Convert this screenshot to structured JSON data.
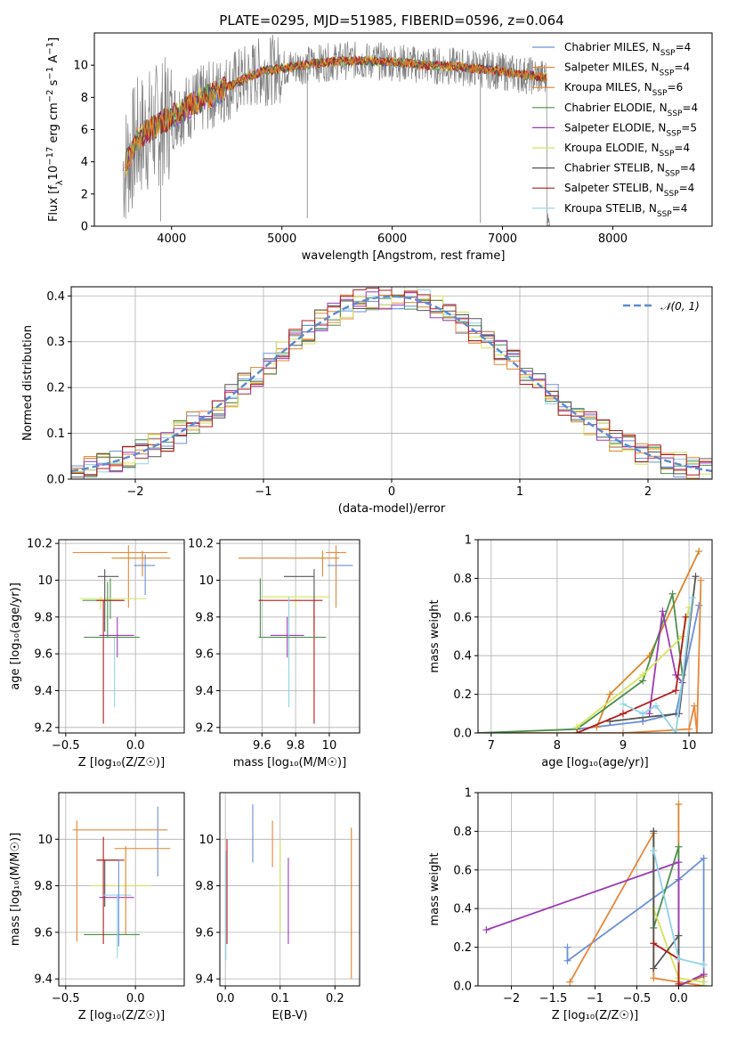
{
  "figure_title": "PLATE=0295, MJD=51985, FIBERID=0596, z=0.064",
  "series_colors": [
    "#6b8fd9",
    "#e8873a",
    "#d9862a",
    "#4d8f4d",
    "#9b3bb5",
    "#d4e45c",
    "#555555",
    "#b31b1b",
    "#8fd3e6"
  ],
  "chart_data": [
    {
      "name": "spectrum",
      "type": "line",
      "xlabel": "wavelength [Angstrom, rest frame]",
      "ylabel_parts": [
        "Flux [f",
        "λ",
        "10",
        "−17",
        " erg cm",
        "−2",
        " s",
        "−1",
        " A",
        "−1",
        "]"
      ],
      "xlim": [
        3300,
        8900
      ],
      "ylim": [
        0,
        12
      ],
      "xticks": [
        4000,
        5000,
        6000,
        7000,
        8000
      ],
      "yticks": [
        0,
        2,
        4,
        6,
        8,
        10
      ],
      "grid": false,
      "legend_position": "right",
      "legend": [
        {
          "base": "Chabrier MILES, N",
          "sub": "SSP",
          "tail": "=4"
        },
        {
          "base": "Salpeter MILES, N",
          "sub": "SSP",
          "tail": "=4"
        },
        {
          "base": "Kroupa MILES, N",
          "sub": "SSP",
          "tail": "=6"
        },
        {
          "base": "Chabrier ELODIE, N",
          "sub": "SSP",
          "tail": "=4"
        },
        {
          "base": "Salpeter ELODIE, N",
          "sub": "SSP",
          "tail": "=5"
        },
        {
          "base": "Kroupa ELODIE, N",
          "sub": "SSP",
          "tail": "=4"
        },
        {
          "base": "Chabrier STELIB, N",
          "sub": "SSP",
          "tail": "=4"
        },
        {
          "base": "Salpeter STELIB, N",
          "sub": "SSP",
          "tail": "=4"
        },
        {
          "base": "Kroupa STELIB, N",
          "sub": "SSP",
          "tail": "=4"
        }
      ],
      "continuum": [
        [
          3560,
          3.5
        ],
        [
          3700,
          5.5
        ],
        [
          3850,
          6.2
        ],
        [
          4000,
          6.8
        ],
        [
          4200,
          7.6
        ],
        [
          4500,
          8.6
        ],
        [
          4800,
          9.6
        ],
        [
          5000,
          9.8
        ],
        [
          5300,
          10.1
        ],
        [
          5600,
          10.3
        ],
        [
          6000,
          10.2
        ],
        [
          6300,
          10.0
        ],
        [
          6600,
          9.9
        ],
        [
          6900,
          9.7
        ],
        [
          7200,
          9.4
        ],
        [
          7400,
          9.2
        ]
      ]
    },
    {
      "name": "residuals",
      "type": "histogram",
      "xlabel": "(data-model)/error",
      "ylabel": "Normed distribution",
      "xlim": [
        -2.5,
        2.5
      ],
      "ylim": [
        0,
        0.42
      ],
      "xticks": [
        -2,
        -1,
        0,
        1,
        2
      ],
      "yticks": [
        0.0,
        0.1,
        0.2,
        0.3,
        0.4
      ],
      "grid": true,
      "reference_curve": "N(0,1)",
      "legend_label": "𝒩(0, 1)",
      "bin_width": 0.1
    },
    {
      "name": "age_vs_Z",
      "type": "errorbar",
      "xlabel": "Z [log₁₀(Z/Z☉)]",
      "ylabel": "age  [log₁₀(age/yr)]",
      "xlim": [
        -0.55,
        0.35
      ],
      "ylim": [
        9.17,
        10.22
      ],
      "xticks": [
        -0.5,
        0.0
      ],
      "yticks": [
        9.2,
        9.4,
        9.6,
        9.8,
        10.0,
        10.2
      ],
      "grid": true,
      "points": [
        {
          "x": 0.07,
          "y": 10.08,
          "xerr": [
            0.08,
            0.07
          ],
          "yerr": [
            0.16,
            0.06
          ],
          "c": 0
        },
        {
          "x": -0.05,
          "y": 10.15,
          "xerr": [
            0.4,
            0.28
          ],
          "yerr": [
            0.3,
            0.04
          ],
          "c": 1
        },
        {
          "x": 0.05,
          "y": 10.12,
          "xerr": [
            0.22,
            0.2
          ],
          "yerr": [
            0.1,
            0.04
          ],
          "c": 2
        },
        {
          "x": -0.18,
          "y": 9.89,
          "xerr": [
            0.2,
            0.1
          ],
          "yerr": [
            0.1,
            0.12
          ],
          "c": 3
        },
        {
          "x": -0.13,
          "y": 9.7,
          "xerr": [
            0.13,
            0.12
          ],
          "yerr": [
            0.12,
            0.1
          ],
          "c": 4
        },
        {
          "x": -0.25,
          "y": 9.9,
          "xerr": [
            0.15,
            0.33
          ],
          "yerr": [
            0.06,
            0.01
          ],
          "c": 5
        },
        {
          "x": -0.22,
          "y": 10.02,
          "xerr": [
            0.05,
            0.1
          ],
          "yerr": [
            0.3,
            0.04
          ],
          "c": 6
        },
        {
          "x": -0.23,
          "y": 9.89,
          "xerr": [
            0.05,
            0.15
          ],
          "yerr": [
            0.67,
            0.0
          ],
          "c": 7
        },
        {
          "x": -0.15,
          "y": 9.69,
          "xerr": [
            0.15,
            0.1
          ],
          "yerr": [
            0.38,
            0.0
          ],
          "c": 8
        },
        {
          "x": -0.2,
          "y": 9.69,
          "xerr": [
            0.17,
            0.23
          ],
          "yerr": [
            0.0,
            0.3
          ],
          "c": 3
        }
      ]
    },
    {
      "name": "age_vs_mass",
      "type": "errorbar",
      "xlabel": "mass [log₁₀(M/M☉)]",
      "ylabel": "",
      "xlim": [
        9.35,
        10.18
      ],
      "ylim": [
        9.17,
        10.22
      ],
      "xticks": [
        9.6,
        9.8,
        10.0
      ],
      "yticks": [
        9.2,
        9.4,
        9.6,
        9.8,
        10.0,
        10.2
      ],
      "grid": true,
      "points": [
        {
          "x": 10.04,
          "y": 10.08,
          "xerr": [
            0.05,
            0.1
          ],
          "yerr": [
            0.16,
            0.06
          ],
          "c": 0
        },
        {
          "x": 10.04,
          "y": 10.15,
          "xerr": [
            0.06,
            0.06
          ],
          "yerr": [
            0.3,
            0.04
          ],
          "c": 1
        },
        {
          "x": 9.96,
          "y": 10.12,
          "xerr": [
            0.5,
            0.1
          ],
          "yerr": [
            0.1,
            0.04
          ],
          "c": 2
        },
        {
          "x": 9.59,
          "y": 9.89,
          "xerr": [
            0.0,
            0.0
          ],
          "yerr": [
            0.2,
            0.12
          ],
          "c": 3
        },
        {
          "x": 9.75,
          "y": 9.7,
          "xerr": [
            0.1,
            0.1
          ],
          "yerr": [
            0.12,
            0.1
          ],
          "c": 4
        },
        {
          "x": 9.8,
          "y": 9.91,
          "xerr": [
            0.2,
            0.2
          ],
          "yerr": [
            0.06,
            0.0
          ],
          "c": 5
        },
        {
          "x": 9.91,
          "y": 10.02,
          "xerr": [
            0.18,
            0.0
          ],
          "yerr": [
            0.3,
            0.04
          ],
          "c": 6
        },
        {
          "x": 9.91,
          "y": 9.89,
          "xerr": [
            0.33,
            0.05
          ],
          "yerr": [
            0.67,
            0.0
          ],
          "c": 7
        },
        {
          "x": 9.76,
          "y": 9.69,
          "xerr": [
            0.0,
            0.0
          ],
          "yerr": [
            0.38,
            0.22
          ],
          "c": 8
        },
        {
          "x": 9.75,
          "y": 9.69,
          "xerr": [
            0.17,
            0.23
          ],
          "yerr": [
            0.0,
            0.0
          ],
          "c": 3
        }
      ]
    },
    {
      "name": "weight_vs_age",
      "type": "line",
      "xlabel": "age  [log₁₀(age/yr)]",
      "ylabel": "mass weight",
      "xlim": [
        6.8,
        10.35
      ],
      "ylim": [
        0,
        1
      ],
      "xticks": [
        7,
        8,
        9,
        10
      ],
      "yticks": [
        0.0,
        0.2,
        0.4,
        0.6,
        0.8,
        1.0
      ],
      "grid": true,
      "series": [
        {
          "c": 0,
          "pts": [
            [
              8.3,
              0.02
            ],
            [
              9.3,
              0.06
            ],
            [
              9.8,
              0.1
            ],
            [
              10.15,
              0.66
            ]
          ]
        },
        {
          "c": 1,
          "pts": [
            [
              6.8,
              0.0
            ],
            [
              9.0,
              0.0
            ],
            [
              10.0,
              0.02
            ],
            [
              10.08,
              0.14
            ],
            [
              10.12,
              0.0
            ],
            [
              10.18,
              0.79
            ]
          ]
        },
        {
          "c": 2,
          "pts": [
            [
              8.6,
              0.03
            ],
            [
              8.8,
              0.2
            ],
            [
              9.4,
              0.4
            ],
            [
              10.15,
              0.94
            ]
          ]
        },
        {
          "c": 3,
          "pts": [
            [
              6.8,
              0.0
            ],
            [
              8.3,
              0.02
            ],
            [
              9.3,
              0.27
            ],
            [
              9.75,
              0.72
            ],
            [
              9.9,
              0.3
            ]
          ]
        },
        {
          "c": 4,
          "pts": [
            [
              9.4,
              0.1
            ],
            [
              9.6,
              0.63
            ],
            [
              9.8,
              0.3
            ],
            [
              9.9,
              0.26
            ]
          ]
        },
        {
          "c": 5,
          "pts": [
            [
              8.3,
              0.03
            ],
            [
              9.3,
              0.3
            ],
            [
              9.9,
              0.5
            ],
            [
              10.0,
              0.65
            ]
          ]
        },
        {
          "c": 6,
          "pts": [
            [
              8.8,
              0.06
            ],
            [
              9.3,
              0.08
            ],
            [
              9.85,
              0.1
            ],
            [
              10.1,
              0.81
            ]
          ]
        },
        {
          "c": 7,
          "pts": [
            [
              8.3,
              0.0
            ],
            [
              9.0,
              0.1
            ],
            [
              9.8,
              0.22
            ],
            [
              9.95,
              0.6
            ]
          ]
        },
        {
          "c": 8,
          "pts": [
            [
              9.0,
              0.15
            ],
            [
              9.3,
              0.1
            ],
            [
              9.5,
              0.14
            ],
            [
              9.8,
              0.0
            ],
            [
              10.05,
              0.7
            ]
          ]
        }
      ]
    },
    {
      "name": "mass_vs_Z",
      "type": "errorbar",
      "xlabel": "Z [log₁₀(Z/Z☉)]",
      "ylabel": "mass [log₁₀(M/M☉)]",
      "xlim": [
        -0.55,
        0.35
      ],
      "ylim": [
        9.37,
        10.2
      ],
      "xticks": [
        -0.5,
        0.0
      ],
      "yticks": [
        9.4,
        9.6,
        9.8,
        10.0
      ],
      "grid": true,
      "points": [
        {
          "x": 0.16,
          "y": 10.04,
          "xerr": [
            0.0,
            0.0
          ],
          "yerr": [
            0.2,
            0.1
          ],
          "c": 0
        },
        {
          "x": -0.05,
          "y": 10.04,
          "xerr": [
            0.4,
            0.28
          ],
          "yerr": [
            0.0,
            0.0
          ],
          "c": 1
        },
        {
          "x": -0.42,
          "y": 9.96,
          "xerr": [
            0.0,
            0.0
          ],
          "yerr": [
            0.4,
            0.12
          ],
          "c": 1
        },
        {
          "x": 0.05,
          "y": 9.96,
          "xerr": [
            0.2,
            0.2
          ],
          "yerr": [
            0.0,
            0.0
          ],
          "c": 2
        },
        {
          "x": -0.2,
          "y": 9.59,
          "xerr": [
            0.17,
            0.23
          ],
          "yerr": [
            0.0,
            0.0
          ],
          "c": 3
        },
        {
          "x": -0.13,
          "y": 9.75,
          "xerr": [
            0.13,
            0.12
          ],
          "yerr": [
            0.0,
            0.0
          ],
          "c": 4
        },
        {
          "x": -0.22,
          "y": 9.8,
          "xerr": [
            0.1,
            0.33
          ],
          "yerr": [
            0.0,
            0.0
          ],
          "c": 5
        },
        {
          "x": -0.22,
          "y": 9.91,
          "xerr": [
            0.05,
            0.1
          ],
          "yerr": [
            0.2,
            0.0
          ],
          "c": 6
        },
        {
          "x": -0.23,
          "y": 9.91,
          "xerr": [
            0.05,
            0.15
          ],
          "yerr": [
            0.36,
            0.1
          ],
          "c": 7
        },
        {
          "x": -0.13,
          "y": 9.76,
          "xerr": [
            0.1,
            0.1
          ],
          "yerr": [
            0.27,
            0.0
          ],
          "c": 8
        },
        {
          "x": -0.07,
          "y": 9.59,
          "xerr": [
            0.0,
            0.0
          ],
          "yerr": [
            0.0,
            0.38
          ],
          "c": 2
        },
        {
          "x": -0.12,
          "y": 9.76,
          "xerr": [
            0.0,
            0.0
          ],
          "yerr": [
            0.22,
            0.15
          ],
          "c": 0
        }
      ]
    },
    {
      "name": "mass_vs_EBV",
      "type": "errorbar",
      "xlabel": "E(B-V)",
      "ylabel": "",
      "xlim": [
        -0.01,
        0.245
      ],
      "ylim": [
        9.37,
        10.2
      ],
      "xticks": [
        0.0,
        0.1,
        0.2
      ],
      "yticks": [
        9.4,
        9.6,
        9.8,
        10.0
      ],
      "grid": true,
      "vlines": [
        {
          "x": 0.003,
          "y0": 9.55,
          "y1": 10.0,
          "c": 7
        },
        {
          "x": 0.001,
          "y0": 9.48,
          "y1": 9.95,
          "c": 8
        },
        {
          "x": 0.05,
          "y0": 9.9,
          "y1": 10.15,
          "c": 0
        },
        {
          "x": 0.086,
          "y0": 9.88,
          "y1": 10.08,
          "c": 1
        },
        {
          "x": 0.1,
          "y0": 9.6,
          "y1": 10.0,
          "c": 5
        },
        {
          "x": 0.115,
          "y0": 9.55,
          "y1": 9.92,
          "c": 4
        },
        {
          "x": 0.23,
          "y0": 9.4,
          "y1": 10.05,
          "c": 2
        }
      ]
    },
    {
      "name": "weight_vs_Z",
      "type": "line",
      "xlabel": "Z [log₁₀(Z/Z☉)]",
      "ylabel": "mass weight",
      "xlim": [
        -2.4,
        0.4
      ],
      "ylim": [
        0,
        1
      ],
      "xticks": [
        -2.0,
        -1.5,
        -1.0,
        -0.5,
        0.0
      ],
      "yticks": [
        0.0,
        0.2,
        0.4,
        0.6,
        0.8,
        1.0
      ],
      "grid": true,
      "series": [
        {
          "c": 0,
          "pts": [
            [
              -1.33,
              0.2
            ],
            [
              -1.33,
              0.13
            ],
            [
              0.0,
              0.55
            ],
            [
              0.3,
              0.66
            ],
            [
              0.3,
              0.0
            ]
          ]
        },
        {
          "c": 1,
          "pts": [
            [
              -1.3,
              0.02
            ],
            [
              -0.3,
              0.79
            ],
            [
              -0.3,
              0.04
            ],
            [
              0.3,
              0.0
            ]
          ]
        },
        {
          "c": 2,
          "pts": [
            [
              0.0,
              0.94
            ],
            [
              0.0,
              0.0
            ],
            [
              0.3,
              0.05
            ]
          ]
        },
        {
          "c": 3,
          "pts": [
            [
              -0.3,
              0.8
            ],
            [
              -0.3,
              0.3
            ],
            [
              0.0,
              0.72
            ],
            [
              0.0,
              0.26
            ]
          ]
        },
        {
          "c": 4,
          "pts": [
            [
              -2.3,
              0.29
            ],
            [
              0.0,
              0.64
            ],
            [
              0.0,
              0.0
            ],
            [
              0.3,
              0.06
            ]
          ]
        },
        {
          "c": 5,
          "pts": [
            [
              -0.3,
              0.4
            ],
            [
              0.0,
              0.04
            ],
            [
              0.3,
              0.02
            ]
          ]
        },
        {
          "c": 6,
          "pts": [
            [
              -0.3,
              0.8
            ],
            [
              -0.3,
              0.09
            ],
            [
              0.0,
              0.26
            ],
            [
              0.0,
              0.0
            ]
          ]
        },
        {
          "c": 7,
          "pts": [
            [
              -0.3,
              0.22
            ],
            [
              0.0,
              0.14
            ],
            [
              0.0,
              0.01
            ]
          ]
        },
        {
          "c": 8,
          "pts": [
            [
              -0.3,
              0.7
            ],
            [
              0.0,
              0.14
            ],
            [
              0.3,
              0.11
            ]
          ]
        }
      ]
    }
  ]
}
